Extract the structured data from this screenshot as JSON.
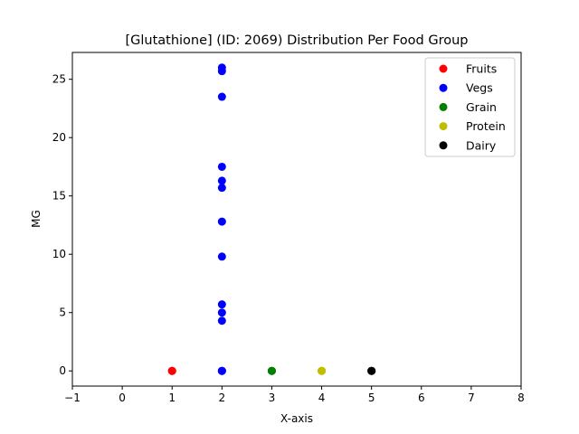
{
  "chart_data": {
    "type": "scatter",
    "title": "[Glutathione] (ID: 2069) Distribution Per Food Group",
    "xlabel": "X-axis",
    "ylabel": "MG",
    "xlim": [
      -1,
      8
    ],
    "ylim": [
      -1.3,
      27.3
    ],
    "xticks": [
      -1,
      0,
      1,
      2,
      3,
      4,
      5,
      6,
      7,
      8
    ],
    "yticks": [
      0,
      5,
      10,
      15,
      20,
      25
    ],
    "grid": false,
    "legend_position": "top-right",
    "series": [
      {
        "name": "Fruits",
        "color": "#ff0000",
        "x": [
          1,
          1,
          1
        ],
        "y": [
          0,
          0,
          0
        ]
      },
      {
        "name": "Vegs",
        "color": "#0000ff",
        "x": [
          2,
          2,
          2,
          2,
          2,
          2,
          2,
          2,
          2,
          2,
          2,
          2,
          2,
          2
        ],
        "y": [
          26.0,
          25.7,
          23.5,
          17.5,
          16.3,
          15.7,
          12.8,
          9.8,
          5.7,
          5.0,
          4.3,
          0,
          0,
          0
        ]
      },
      {
        "name": "Grain",
        "color": "#008000",
        "x": [
          3,
          3,
          3
        ],
        "y": [
          0,
          0,
          0
        ]
      },
      {
        "name": "Protein",
        "color": "#bfbf00",
        "x": [
          4,
          4,
          4
        ],
        "y": [
          0,
          0,
          0
        ]
      },
      {
        "name": "Dairy",
        "color": "#000000",
        "x": [
          5,
          5,
          5
        ],
        "y": [
          0,
          0,
          0
        ]
      }
    ]
  }
}
